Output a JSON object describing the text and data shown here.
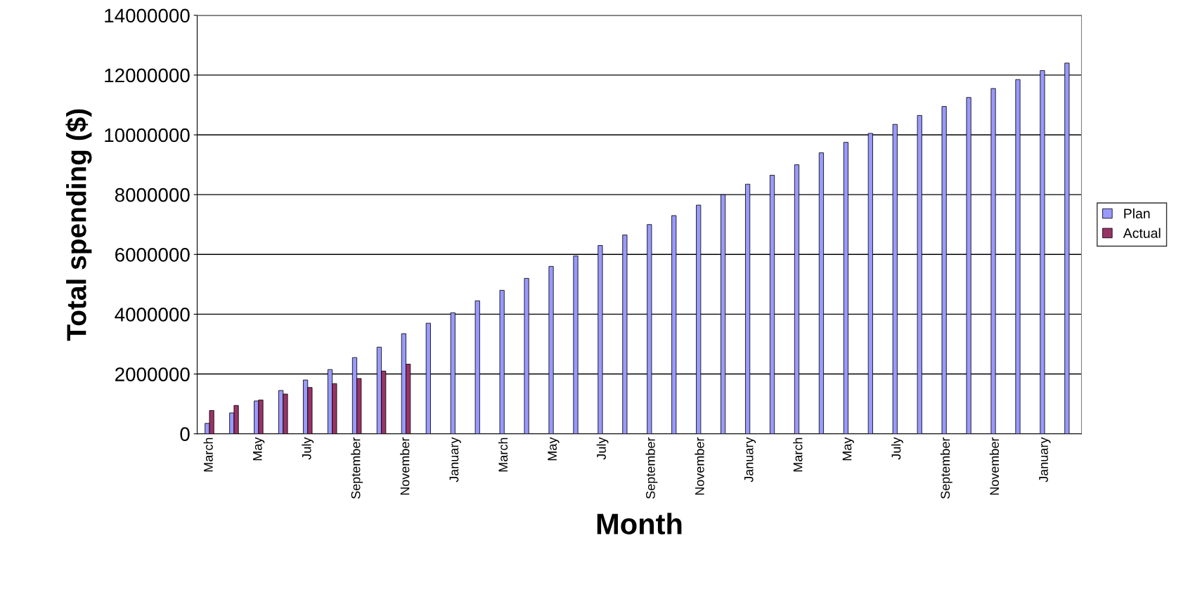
{
  "chart_data": {
    "type": "bar",
    "xlabel": "Month",
    "ylabel": "Total spending ($)",
    "categories": [
      "March",
      null,
      "May",
      null,
      "July",
      null,
      "September",
      null,
      "November",
      null,
      "January",
      null,
      "March",
      null,
      "May",
      null,
      "July",
      null,
      "September",
      null,
      "November",
      null,
      "January",
      null,
      "March",
      null,
      "May",
      null,
      "July",
      null,
      "September",
      null,
      "November",
      null,
      "January",
      null
    ],
    "series": [
      {
        "name": "Plan",
        "color": "#9999ff",
        "values": [
          350000,
          700000,
          1100000,
          1450000,
          1800000,
          2150000,
          2550000,
          2900000,
          3350000,
          3700000,
          4050000,
          4450000,
          4800000,
          5200000,
          5600000,
          5950000,
          6300000,
          6650000,
          7000000,
          7300000,
          7650000,
          8000000,
          8350000,
          8650000,
          9000000,
          9400000,
          9750000,
          10050000,
          10350000,
          10650000,
          10950000,
          11250000,
          11550000,
          11850000,
          12150000,
          12400000
        ]
      },
      {
        "name": "Actual",
        "color": "#993366",
        "values": [
          780000,
          950000,
          1130000,
          1330000,
          1550000,
          1680000,
          1850000,
          2100000,
          2330000,
          null,
          null,
          null,
          null,
          null,
          null,
          null,
          null,
          null,
          null,
          null,
          null,
          null,
          null,
          null,
          null,
          null,
          null,
          null,
          null,
          null,
          null,
          null,
          null,
          null,
          null,
          null
        ]
      }
    ],
    "ylim": [
      0,
      14000000
    ],
    "yticks": [
      0,
      2000000,
      4000000,
      6000000,
      8000000,
      10000000,
      12000000,
      14000000
    ],
    "grid": "y",
    "legend": "right"
  }
}
